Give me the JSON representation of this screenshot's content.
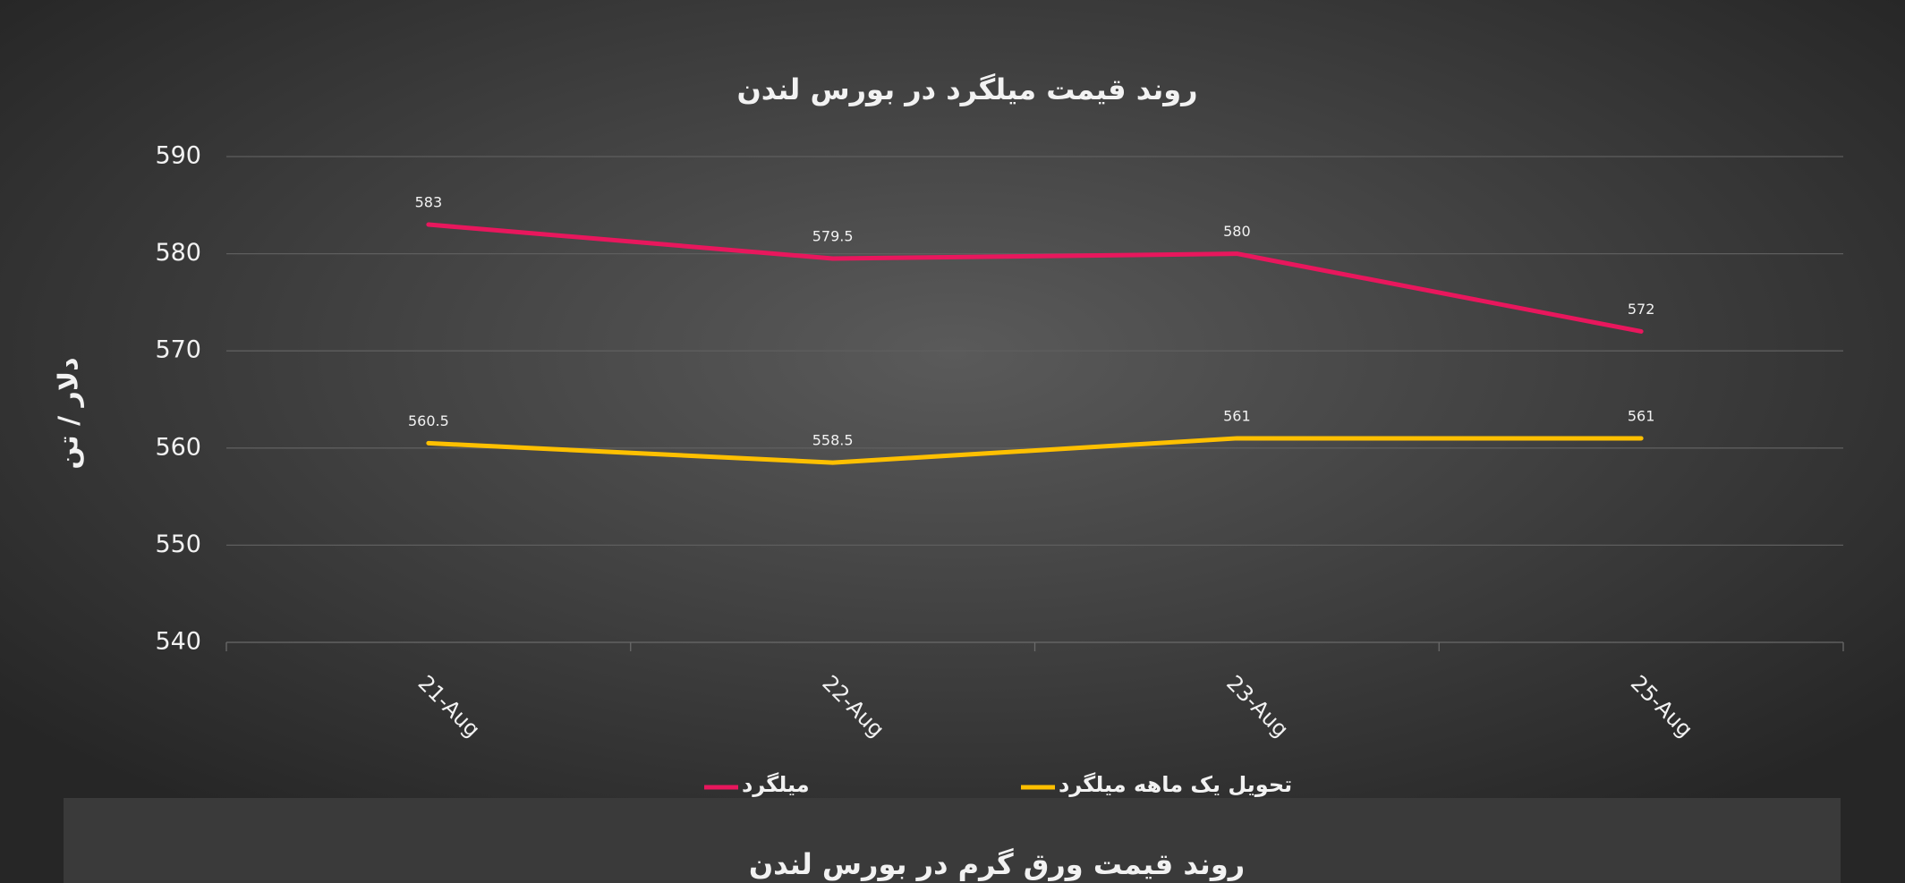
{
  "chart_data": {
    "type": "line",
    "title": "روند  قیمت میلگرد در بورس لندن",
    "y_label": "دلار / تن",
    "categories": [
      "21-Aug",
      "22-Aug",
      "23-Aug",
      "25-Aug"
    ],
    "series": [
      {
        "name": "میلگرد",
        "color": "#e8175d",
        "values": [
          583,
          579.5,
          580,
          572
        ]
      },
      {
        "name": "تحویل یک ماهه میلگرد",
        "color": "#ffc000",
        "values": [
          560.5,
          558.5,
          561,
          561
        ]
      }
    ],
    "ylim": [
      540,
      590
    ],
    "yticks": [
      540,
      550,
      560,
      570,
      580,
      590
    ],
    "grid": true,
    "legend": "bottom"
  },
  "next_chart": {
    "title": "روند قیمت ورق گرم در بورس لندن"
  }
}
